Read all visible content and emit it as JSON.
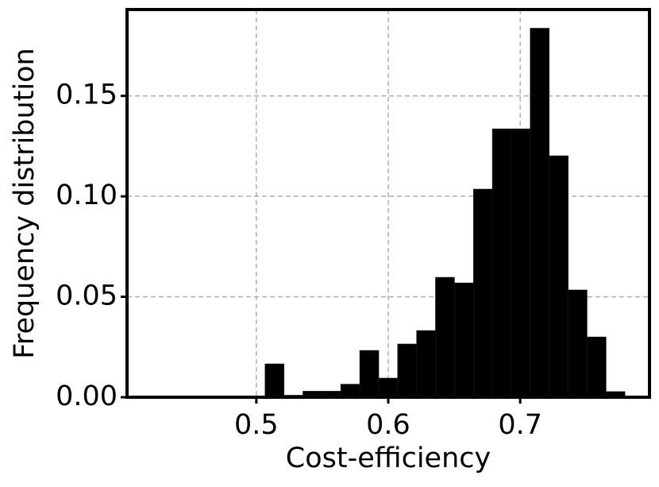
{
  "chart_data": {
    "type": "histogram",
    "x_label": "Cost-efficiency",
    "y_label": "Frequency distribution",
    "bins": [
      0.5066,
      0.521,
      0.5353,
      0.5497,
      0.564,
      0.5784,
      0.5928,
      0.6071,
      0.6215,
      0.6358,
      0.6502,
      0.6646,
      0.6789,
      0.6933,
      0.7076,
      0.722,
      0.7364,
      0.7507,
      0.7651,
      0.7794
    ],
    "values": [
      0.0166,
      0.001,
      0.003,
      0.003,
      0.0065,
      0.0233,
      0.0095,
      0.0265,
      0.0332,
      0.0597,
      0.0569,
      0.1036,
      0.1336,
      0.1336,
      0.1837,
      0.1202,
      0.0534,
      0.03,
      0.0028
    ],
    "color": "#000000",
    "xlim": [
      0.402,
      0.798
    ],
    "ylim": [
      0,
      0.193
    ],
    "xticks": [
      0.5,
      0.6,
      0.7
    ],
    "yticks": [
      {
        "value": 0,
        "label": "0.00"
      },
      {
        "value": 0.05,
        "label": "0.05"
      },
      {
        "value": 0.1,
        "label": "0.10"
      },
      {
        "value": 0.15,
        "label": "0.15"
      }
    ],
    "grid": true
  }
}
